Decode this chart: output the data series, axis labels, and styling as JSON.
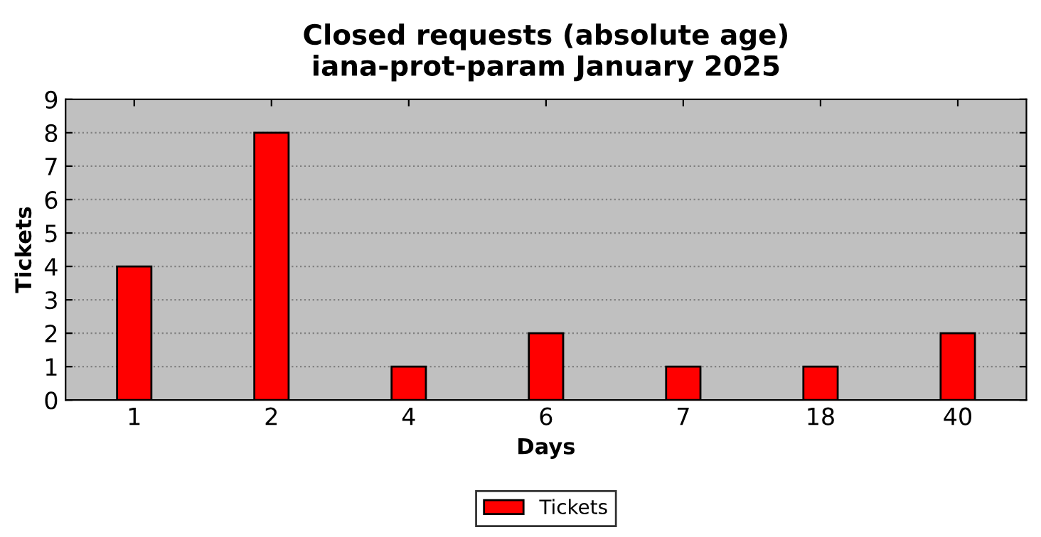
{
  "chart_data": {
    "type": "bar",
    "title": "Closed requests (absolute age)\niana-prot-param January 2025",
    "xlabel": "Days",
    "ylabel": "Tickets",
    "categories": [
      "1",
      "2",
      "4",
      "6",
      "7",
      "18",
      "40"
    ],
    "series": [
      {
        "name": "Tickets",
        "color": "#ff0000",
        "values": [
          4,
          8,
          1,
          2,
          1,
          1,
          2
        ]
      }
    ],
    "ylim": [
      0,
      9
    ],
    "yticks": [
      0,
      1,
      2,
      3,
      4,
      5,
      6,
      7,
      8,
      9
    ],
    "grid": "y",
    "legend": "bottom"
  }
}
